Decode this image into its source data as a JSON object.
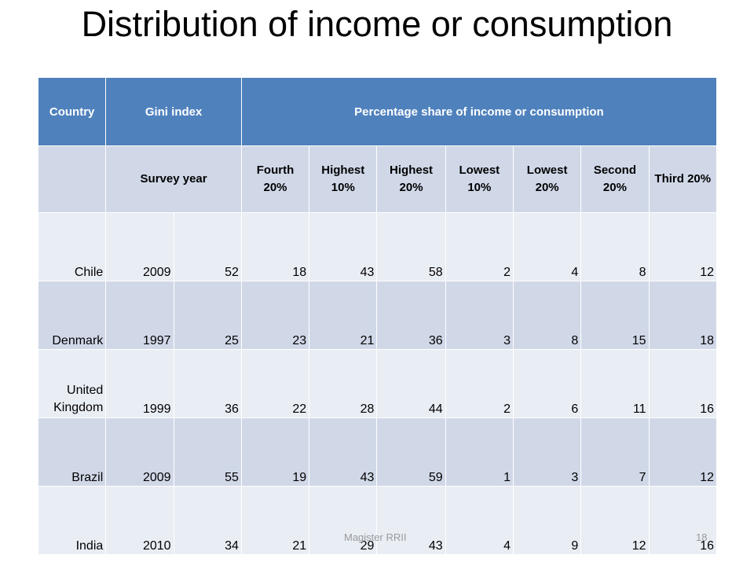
{
  "slide": {
    "title": "Distribution of income or consumption",
    "footer": "Magister RRII",
    "page_number": "18"
  },
  "table": {
    "header_top": {
      "country": "Country",
      "gini": "Gini index",
      "share": "Percentage share of income or consumption"
    },
    "header_sub": {
      "blank": "",
      "survey_year": "Survey year",
      "cols": [
        "Fourth 20%",
        "Highest 10%",
        "Highest 20%",
        "Lowest 10%",
        "Lowest 20%",
        "Second 20%",
        "Third 20%"
      ]
    },
    "rows": [
      {
        "country": "Chile",
        "cells": [
          "2009",
          "52",
          "18",
          "43",
          "58",
          "2",
          "4",
          "8",
          "12"
        ]
      },
      {
        "country": "Denmark",
        "cells": [
          "1997",
          "25",
          "23",
          "21",
          "36",
          "3",
          "8",
          "15",
          "18"
        ]
      },
      {
        "country": "United Kingdom",
        "cells": [
          "1999",
          "36",
          "22",
          "28",
          "44",
          "2",
          "6",
          "11",
          "16"
        ]
      },
      {
        "country": "Brazil",
        "cells": [
          "2009",
          "55",
          "19",
          "43",
          "59",
          "1",
          "3",
          "7",
          "12"
        ]
      },
      {
        "country": "India",
        "cells": [
          "2010",
          "34",
          "21",
          "29",
          "43",
          "4",
          "9",
          "12",
          "16"
        ]
      }
    ]
  }
}
